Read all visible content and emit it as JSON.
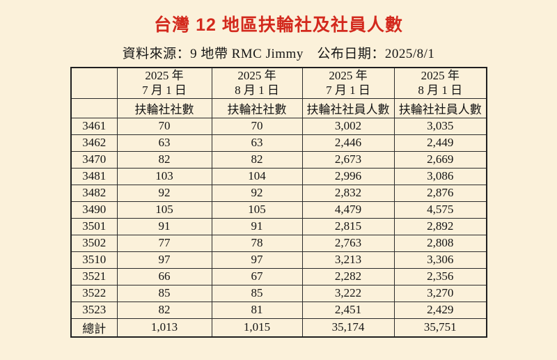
{
  "title": "台灣 12 地區扶輪社及社員人數",
  "source_line": "資料來源：9 地帶 RMC Jimmy　公布日期：2025/8/1",
  "colors": {
    "background": "#FBF1DA",
    "title_red": "#D3291D",
    "text": "#141414",
    "border": "#2B2B2B"
  },
  "table": {
    "column_headers": [
      {
        "year_line": "2025 年",
        "date_line": "7 月 1 日",
        "metric": "扶輪社社數"
      },
      {
        "year_line": "2025 年",
        "date_line": "8 月 1 日",
        "metric": "扶輪社社數"
      },
      {
        "year_line": "2025 年",
        "date_line": "7 月 1 日",
        "metric": "扶輪社社員人數"
      },
      {
        "year_line": "2025 年",
        "date_line": "8 月 1 日",
        "metric": "扶輪社社員人數"
      }
    ],
    "rows": [
      {
        "district": "3461",
        "values": [
          "70",
          "70",
          "3,002",
          "3,035"
        ]
      },
      {
        "district": "3462",
        "values": [
          "63",
          "63",
          "2,446",
          "2,449"
        ]
      },
      {
        "district": "3470",
        "values": [
          "82",
          "82",
          "2,673",
          "2,669"
        ]
      },
      {
        "district": "3481",
        "values": [
          "103",
          "104",
          "2,996",
          "3,086"
        ]
      },
      {
        "district": "3482",
        "values": [
          "92",
          "92",
          "2,832",
          "2,876"
        ]
      },
      {
        "district": "3490",
        "values": [
          "105",
          "105",
          "4,479",
          "4,575"
        ]
      },
      {
        "district": "3501",
        "values": [
          "91",
          "91",
          "2,815",
          "2,892"
        ]
      },
      {
        "district": "3502",
        "values": [
          "77",
          "78",
          "2,763",
          "2,808"
        ]
      },
      {
        "district": "3510",
        "values": [
          "97",
          "97",
          "3,213",
          "3,306"
        ]
      },
      {
        "district": "3521",
        "values": [
          "66",
          "67",
          "2,282",
          "2,356"
        ]
      },
      {
        "district": "3522",
        "values": [
          "85",
          "85",
          "3,222",
          "3,270"
        ]
      },
      {
        "district": "3523",
        "values": [
          "82",
          "81",
          "2,451",
          "2,429"
        ]
      }
    ],
    "total_row": {
      "label": "總計",
      "values": [
        "1,013",
        "1,015",
        "35,174",
        "35,751"
      ]
    }
  }
}
